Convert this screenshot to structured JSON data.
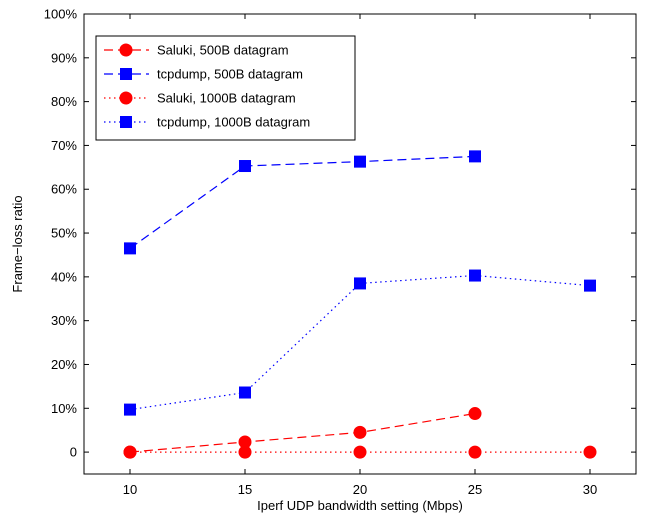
{
  "chart_data": {
    "type": "line",
    "title": "",
    "xlabel": "Iperf UDP bandwidth setting (Mbps)",
    "ylabel": "Frame−loss ratio",
    "xlim": [
      8,
      32
    ],
    "ylim": [
      -5,
      100
    ],
    "xticks": [
      10,
      15,
      20,
      25,
      30
    ],
    "xtick_labels": [
      "10",
      "15",
      "20",
      "25",
      "30"
    ],
    "yticks": [
      0,
      10,
      20,
      30,
      40,
      50,
      60,
      70,
      80,
      90,
      100
    ],
    "ytick_labels": [
      "0",
      "10%",
      "20%",
      "30%",
      "40%",
      "50%",
      "60%",
      "70%",
      "80%",
      "90%",
      "100%"
    ],
    "grid": false,
    "legend_position": "top-left",
    "series": [
      {
        "name": "Saluki, 500B datagram",
        "color": "#ff0000",
        "line_style": "dashed",
        "marker": "circle",
        "x": [
          10,
          15,
          20,
          25
        ],
        "y": [
          0,
          2.3,
          4.5,
          8.8
        ]
      },
      {
        "name": "tcpdump, 500B datagram",
        "color": "#0000ff",
        "line_style": "dashed",
        "marker": "square",
        "x": [
          10,
          15,
          20,
          25
        ],
        "y": [
          46.5,
          65.3,
          66.3,
          67.5
        ]
      },
      {
        "name": "Saluki, 1000B datagram",
        "color": "#ff0000",
        "line_style": "dotted",
        "marker": "circle",
        "x": [
          10,
          15,
          20,
          25,
          30
        ],
        "y": [
          0,
          0,
          0,
          0,
          0
        ]
      },
      {
        "name": "tcpdump, 1000B datagram",
        "color": "#0000ff",
        "line_style": "dotted",
        "marker": "square",
        "x": [
          10,
          15,
          20,
          25,
          30
        ],
        "y": [
          9.7,
          13.6,
          38.5,
          40.3,
          38
        ]
      }
    ]
  }
}
